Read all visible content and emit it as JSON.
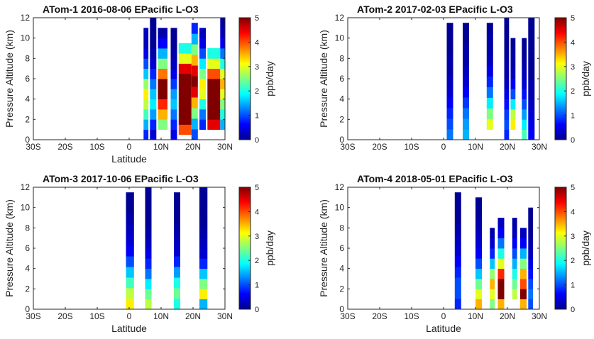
{
  "chart_data": [
    {
      "type": "heatmap",
      "title": "ATom-1 2016-08-06   EPacific     L-O3",
      "xlabel": "Latitude",
      "ylabel": "Pressure Altitude (km)",
      "x_ticks": [
        -30,
        -20,
        -10,
        0,
        10,
        20,
        30
      ],
      "x_tick_labels": [
        "30S",
        "20S",
        "10S",
        "0",
        "10N",
        "20N",
        "30N"
      ],
      "y_ticks": [
        0,
        2,
        4,
        6,
        8,
        10,
        12
      ],
      "y_tick_labels": [
        "0",
        "2",
        "4",
        "6",
        "8",
        "10",
        "12"
      ],
      "xlim": [
        -30,
        30
      ],
      "ylim": [
        0,
        12
      ],
      "colorbar": {
        "label": "ppb/day",
        "range": [
          0,
          5
        ],
        "ticks": [
          "0",
          "1",
          "2",
          "3",
          "4",
          "5"
        ],
        "colormap": "jet"
      },
      "profiles": [
        {
          "lat_range": [
            4.5,
            6.0
          ],
          "alt_range": [
            0,
            11
          ],
          "values": [
            0.8,
            1.5,
            2.2,
            2.8,
            3.2,
            2.6,
            1.6,
            1.0,
            0.5,
            0.3,
            0.3
          ]
        },
        {
          "lat_range": [
            6.5,
            8.5
          ],
          "alt_range": [
            0,
            12
          ],
          "values": [
            0.4,
            0.8,
            1.4,
            1.8,
            1.6,
            1.2,
            0.8,
            0.4,
            0.2,
            0.1,
            0.1,
            0.1
          ]
        },
        {
          "lat_range": [
            9.0,
            12.0
          ],
          "alt_range": [
            1,
            11
          ],
          "values": [
            2.5,
            3.5,
            4.2,
            5.0,
            5.0,
            3.8,
            2.5,
            1.5,
            0.6,
            0.2
          ]
        },
        {
          "lat_range": [
            13.0,
            15.0
          ],
          "alt_range": [
            0,
            11
          ],
          "values": [
            0.5,
            0.8,
            1.2,
            1.6,
            1.4,
            0.9,
            0.5,
            0.3,
            0.2,
            0.1,
            0.1
          ]
        },
        {
          "lat_range": [
            15.5,
            19.5
          ],
          "alt_range": [
            0.5,
            9.5
          ],
          "values": [
            4.0,
            5.0,
            5.0,
            5.0,
            5.0,
            5.0,
            4.5,
            3.0,
            2.0
          ]
        },
        {
          "lat_range": [
            19.5,
            21.5
          ],
          "alt_range": [
            0,
            11.5
          ],
          "values": [
            1.0,
            1.5,
            2.5,
            3.5,
            4.5,
            5.0,
            4.5,
            3.5,
            2.5,
            1.5,
            0.8
          ]
        },
        {
          "lat_range": [
            22.0,
            24.0
          ],
          "alt_range": [
            1,
            11
          ],
          "values": [
            0.8,
            1.2,
            2.0,
            3.0,
            3.2,
            2.5,
            1.8,
            1.0,
            0.5,
            0.3
          ]
        },
        {
          "lat_range": [
            24.5,
            28.5
          ],
          "alt_range": [
            1,
            9
          ],
          "values": [
            4.5,
            5.0,
            5.0,
            5.0,
            5.0,
            4.0,
            3.0,
            2.0
          ]
        },
        {
          "lat_range": [
            28.5,
            30.0
          ],
          "alt_range": [
            1,
            12
          ],
          "values": [
            1.5,
            2.0,
            2.5,
            3.0,
            3.5,
            3.0,
            2.0,
            1.2,
            0.6,
            0.3,
            0.2
          ]
        }
      ]
    },
    {
      "type": "heatmap",
      "title": "ATom-2 2017-02-03   EPacific     L-O3",
      "xlabel": "",
      "ylabel": "Pressure Altitude (km)",
      "x_ticks": [
        -30,
        -20,
        -10,
        0,
        10,
        20,
        30
      ],
      "x_tick_labels": [
        "30S",
        "20S",
        "10S",
        "0",
        "10N",
        "20N",
        "30N"
      ],
      "y_ticks": [
        0,
        2,
        4,
        6,
        8,
        10,
        12
      ],
      "y_tick_labels": [
        "0",
        "2",
        "4",
        "6",
        "8",
        "10",
        "12"
      ],
      "xlim": [
        -30,
        30
      ],
      "ylim": [
        0,
        12
      ],
      "colorbar": {
        "label": "ppb/day",
        "range": [
          0,
          5
        ],
        "ticks": [
          "0",
          "1",
          "2",
          "3",
          "4",
          "5"
        ],
        "colormap": "jet"
      },
      "profiles": [
        {
          "lat_range": [
            1.0,
            3.0
          ],
          "alt_range": [
            0,
            11.5
          ],
          "values": [
            1.2,
            1.0,
            0.8,
            0.6,
            0.4,
            0.3,
            0.2,
            0.2,
            0.1,
            0.1,
            0.1
          ]
        },
        {
          "lat_range": [
            6.0,
            8.0
          ],
          "alt_range": [
            0,
            11.5
          ],
          "values": [
            1.5,
            1.4,
            1.2,
            0.9,
            0.6,
            0.4,
            0.3,
            0.2,
            0.2,
            0.1,
            0.1
          ]
        },
        {
          "lat_range": [
            13.5,
            15.5
          ],
          "alt_range": [
            1,
            11.5
          ],
          "values": [
            3.0,
            2.5,
            1.8,
            1.2,
            0.8,
            0.5,
            0.3,
            0.2,
            0.2,
            0.1
          ]
        },
        {
          "lat_range": [
            19.0,
            20.5
          ],
          "alt_range": [
            0,
            12
          ],
          "values": [
            0.8,
            1.0,
            0.9,
            0.7,
            0.5,
            0.3,
            0.2,
            0.2,
            0.1,
            0.1,
            0.1,
            0.1
          ]
        },
        {
          "lat_range": [
            21.0,
            22.5
          ],
          "alt_range": [
            1,
            10
          ],
          "values": [
            3.2,
            2.8,
            1.8,
            1.0,
            0.6,
            0.3,
            0.2,
            0.2,
            0.1
          ]
        },
        {
          "lat_range": [
            24.5,
            26.0
          ],
          "alt_range": [
            0,
            10
          ],
          "values": [
            2.2,
            1.8,
            1.4,
            1.0,
            0.7,
            0.4,
            0.3,
            0.2,
            0.1,
            0.1
          ]
        },
        {
          "lat_range": [
            26.5,
            28.5
          ],
          "alt_range": [
            0,
            12
          ],
          "values": [
            0.6,
            0.5,
            0.4,
            0.3,
            0.2,
            0.2,
            0.1,
            0.1,
            0.1,
            0.1,
            0.1,
            0.1
          ]
        }
      ]
    },
    {
      "type": "heatmap",
      "title": "ATom-3 2017-10-06   EPacific     L-O3",
      "xlabel": "Latitude",
      "ylabel": "Pressure Altitude (km)",
      "x_ticks": [
        -30,
        -20,
        -10,
        0,
        10,
        20,
        30
      ],
      "x_tick_labels": [
        "30S",
        "20S",
        "10S",
        "0",
        "10N",
        "20N",
        "30N"
      ],
      "y_ticks": [
        0,
        2,
        4,
        6,
        8,
        10,
        12
      ],
      "y_tick_labels": [
        "0",
        "2",
        "4",
        "6",
        "8",
        "10",
        "12"
      ],
      "xlim": [
        -30,
        30
      ],
      "ylim": [
        0,
        12
      ],
      "colorbar": {
        "label": "ppb/day",
        "range": [
          0,
          5
        ],
        "ticks": [
          "0",
          "1",
          "2",
          "3",
          "4",
          "5"
        ],
        "colormap": "jet"
      },
      "profiles": [
        {
          "lat_range": [
            -1.0,
            1.5
          ],
          "alt_range": [
            0,
            11.5
          ],
          "values": [
            3.2,
            2.8,
            2.2,
            1.6,
            1.0,
            0.6,
            0.4,
            0.3,
            0.2,
            0.1,
            0.1
          ]
        },
        {
          "lat_range": [
            5.0,
            7.0
          ],
          "alt_range": [
            0,
            12
          ],
          "values": [
            2.8,
            2.4,
            1.8,
            1.2,
            0.8,
            0.5,
            0.3,
            0.2,
            0.1,
            0.1,
            0.1,
            0.1
          ]
        },
        {
          "lat_range": [
            14.0,
            16.0
          ],
          "alt_range": [
            0,
            11.5
          ],
          "values": [
            2.0,
            2.4,
            2.0,
            1.4,
            0.8,
            0.4,
            0.3,
            0.2,
            0.1,
            0.1,
            0.1
          ]
        },
        {
          "lat_range": [
            22.0,
            24.5
          ],
          "alt_range": [
            0,
            12
          ],
          "values": [
            1.5,
            3.2,
            2.5,
            1.6,
            0.8,
            0.4,
            0.3,
            0.2,
            0.1,
            0.1,
            0.1,
            0.1
          ]
        }
      ]
    },
    {
      "type": "heatmap",
      "title": "ATom-4 2018-05-01   EPacific     L-O3",
      "xlabel": "Latitude",
      "ylabel": "Pressure Altitude (km)",
      "x_ticks": [
        -30,
        -20,
        -10,
        0,
        10,
        20,
        30
      ],
      "x_tick_labels": [
        "30S",
        "20S",
        "10S",
        "0",
        "10N",
        "20N",
        "30N"
      ],
      "y_ticks": [
        0,
        2,
        4,
        6,
        8,
        10,
        12
      ],
      "y_tick_labels": [
        "0",
        "2",
        "4",
        "6",
        "8",
        "10",
        "12"
      ],
      "xlim": [
        -30,
        30
      ],
      "ylim": [
        0,
        12
      ],
      "colorbar": {
        "label": "ppb/day",
        "range": [
          0,
          5
        ],
        "ticks": [
          "0",
          "1",
          "2",
          "3",
          "4",
          "5"
        ],
        "colormap": "jet"
      },
      "profiles": [
        {
          "lat_range": [
            3.5,
            5.5
          ],
          "alt_range": [
            0,
            11.5
          ],
          "values": [
            0.8,
            1.0,
            1.0,
            0.8,
            0.6,
            0.4,
            0.3,
            0.2,
            0.1,
            0.1,
            0.1
          ]
        },
        {
          "lat_range": [
            10.0,
            12.0
          ],
          "alt_range": [
            0,
            11
          ],
          "values": [
            3.5,
            3.0,
            2.4,
            1.6,
            1.0,
            0.6,
            0.4,
            0.3,
            0.2,
            0.1,
            0.1
          ]
        },
        {
          "lat_range": [
            14.5,
            16.0
          ],
          "alt_range": [
            0,
            8
          ],
          "values": [
            2.5,
            3.0,
            3.5,
            2.6,
            1.6,
            0.8,
            0.4,
            0.2
          ]
        },
        {
          "lat_range": [
            17.0,
            19.0
          ],
          "alt_range": [
            0,
            9
          ],
          "values": [
            3.5,
            5.0,
            5.0,
            4.2,
            3.0,
            2.0,
            1.2,
            0.6,
            0.3
          ]
        },
        {
          "lat_range": [
            21.5,
            23.0
          ],
          "alt_range": [
            1,
            9
          ],
          "values": [
            2.8,
            2.4,
            2.0,
            1.5,
            1.0,
            0.6,
            0.3,
            0.2
          ]
        },
        {
          "lat_range": [
            24.0,
            26.0
          ],
          "alt_range": [
            0,
            8
          ],
          "values": [
            3.5,
            5.0,
            4.0,
            3.5,
            2.5,
            1.5,
            0.6,
            0.3
          ]
        },
        {
          "lat_range": [
            26.5,
            28.0
          ],
          "alt_range": [
            0,
            10
          ],
          "values": [
            1.0,
            1.2,
            1.0,
            0.7,
            0.5,
            0.3,
            0.2,
            0.1,
            0.1,
            0.1
          ]
        }
      ]
    }
  ]
}
